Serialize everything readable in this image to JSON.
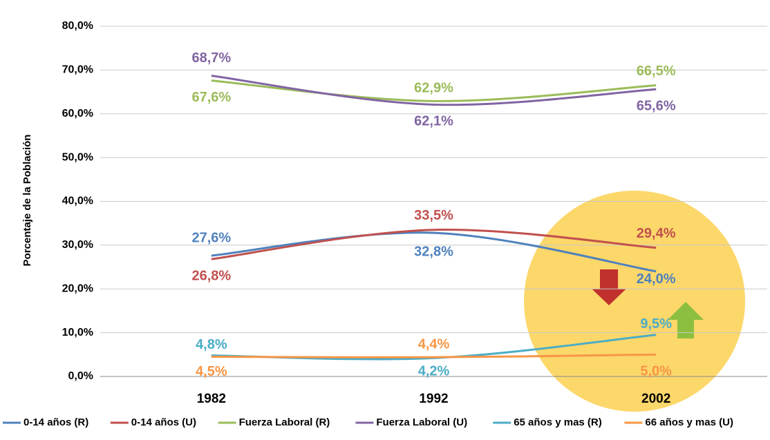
{
  "chart_data": {
    "type": "line",
    "y_axis_label": "Porcentaje de la Población",
    "categories": [
      "1982",
      "1992",
      "2002"
    ],
    "ylim": [
      0,
      80
    ],
    "yticks": [
      {
        "value": 0,
        "label": "0,0%"
      },
      {
        "value": 10,
        "label": "10,0%"
      },
      {
        "value": 20,
        "label": "20,0%"
      },
      {
        "value": 30,
        "label": "30,0%"
      },
      {
        "value": 40,
        "label": "40,0%"
      },
      {
        "value": 50,
        "label": "50,0%"
      },
      {
        "value": 60,
        "label": "60,0%"
      },
      {
        "value": 70,
        "label": "70,0%"
      },
      {
        "value": 80,
        "label": "80,0%"
      }
    ],
    "grid": true,
    "legend": "bottom",
    "series": [
      {
        "name": "0-14 años (R)",
        "color": "#4f81bd",
        "values": [
          27.6,
          32.8,
          24.0
        ],
        "value_labels": [
          "27,6%",
          "32,8%",
          "24,0%"
        ]
      },
      {
        "name": "0-14 años (U)",
        "color": "#c0504d",
        "values": [
          26.8,
          33.5,
          29.4
        ],
        "value_labels": [
          "26,8%",
          "33,5%",
          "29,4%"
        ]
      },
      {
        "name": "Fuerza Laboral (R)",
        "color": "#9bbb59",
        "values": [
          67.6,
          62.9,
          66.5
        ],
        "value_labels": [
          "67,6%",
          "62,9%",
          "66,5%"
        ]
      },
      {
        "name": "Fuerza Laboral (U)",
        "color": "#8064a2",
        "values": [
          68.7,
          62.1,
          65.6
        ],
        "value_labels": [
          "68,7%",
          "62,1%",
          "65,6%"
        ]
      },
      {
        "name": "65 años y mas (R)",
        "color": "#4bacc6",
        "values": [
          4.8,
          4.2,
          9.5
        ],
        "value_labels": [
          "4,8%",
          "4,2%",
          "9,5%"
        ]
      },
      {
        "name": "66 años y mas (U)",
        "color": "#f79646",
        "values": [
          4.5,
          4.4,
          5.0
        ],
        "value_labels": [
          "4,5%",
          "4,4%",
          "5,0%"
        ]
      }
    ]
  }
}
